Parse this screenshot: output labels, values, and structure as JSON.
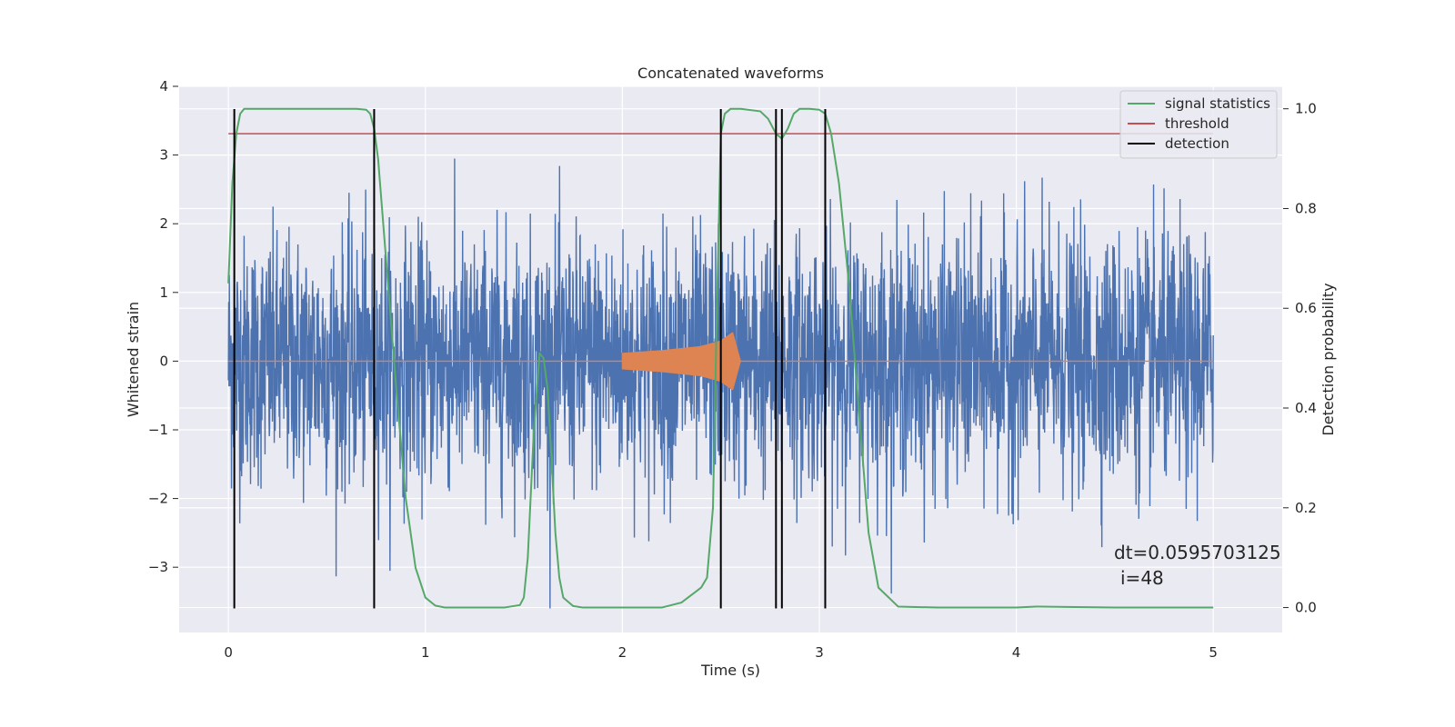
{
  "chart_data": {
    "type": "line",
    "title": "Concatenated waveforms",
    "xlabel": "Time (s)",
    "ylabel_left": "Whitened strain",
    "ylabel_right": "Detection probability",
    "xlim": [
      -0.25,
      5.35
    ],
    "ylim_left": [
      -3.95,
      4.0
    ],
    "ylim_right": [
      -0.05,
      1.045
    ],
    "xticks": [
      0,
      1,
      2,
      3,
      4,
      5
    ],
    "yticks_left": [
      -3,
      -2,
      -1,
      0,
      1,
      2,
      3,
      4
    ],
    "yticks_right": [
      0.0,
      0.2,
      0.4,
      0.6,
      0.8,
      1.0
    ],
    "xtick_labels": [
      "0",
      "1",
      "2",
      "3",
      "4",
      "5"
    ],
    "ytick_labels_left": [
      "−3",
      "−2",
      "−1",
      "0",
      "1",
      "2",
      "3",
      "4"
    ],
    "ytick_labels_right": [
      "0.0",
      "0.2",
      "0.4",
      "0.6",
      "0.8",
      "1.0"
    ],
    "grid": true,
    "legend_position": "top-right",
    "background_color": "#eaeaf2",
    "series": [
      {
        "name": "",
        "kind": "noisy strain",
        "color": "#4c72b0",
        "x_range": [
          0,
          5
        ],
        "typical_amplitude": 0.9,
        "min": -3.6,
        "max": 3.55
      },
      {
        "name": "",
        "kind": "injected chirp",
        "color": "#dd8452",
        "x_range": [
          2.0,
          2.6
        ],
        "envelope_x": [
          2.0,
          2.2,
          2.4,
          2.5,
          2.56,
          2.6
        ],
        "envelope_y": [
          0.12,
          0.16,
          0.22,
          0.3,
          0.42,
          0.0
        ]
      },
      {
        "name": "signal statistics",
        "axis": "right",
        "color": "#55a868",
        "x": [
          0.0,
          0.02,
          0.04,
          0.06,
          0.08,
          0.1,
          0.15,
          0.3,
          0.5,
          0.65,
          0.7,
          0.72,
          0.74,
          0.76,
          0.8,
          0.85,
          0.9,
          0.95,
          1.0,
          1.05,
          1.1,
          1.2,
          1.4,
          1.48,
          1.5,
          1.52,
          1.55,
          1.58,
          1.6,
          1.62,
          1.64,
          1.66,
          1.68,
          1.7,
          1.75,
          1.8,
          2.0,
          2.2,
          2.3,
          2.35,
          2.4,
          2.43,
          2.46,
          2.48,
          2.5,
          2.52,
          2.55,
          2.6,
          2.7,
          2.74,
          2.78,
          2.81,
          2.84,
          2.87,
          2.9,
          2.95,
          3.0,
          3.03,
          3.06,
          3.1,
          3.15,
          3.2,
          3.25,
          3.3,
          3.4,
          3.6,
          4.0,
          4.1,
          4.3,
          4.5,
          5.0
        ],
        "y": [
          0.65,
          0.85,
          0.95,
          0.99,
          1.0,
          1.0,
          1.0,
          1.0,
          1.0,
          1.0,
          0.998,
          0.99,
          0.96,
          0.9,
          0.7,
          0.45,
          0.22,
          0.08,
          0.02,
          0.004,
          0.0,
          0.0,
          0.0,
          0.005,
          0.02,
          0.1,
          0.35,
          0.51,
          0.5,
          0.44,
          0.3,
          0.15,
          0.06,
          0.02,
          0.003,
          0.0,
          0.0,
          0.0,
          0.01,
          0.025,
          0.04,
          0.06,
          0.2,
          0.6,
          0.95,
          0.99,
          1.0,
          1.0,
          0.995,
          0.98,
          0.95,
          0.94,
          0.96,
          0.99,
          1.0,
          1.0,
          0.998,
          0.99,
          0.95,
          0.85,
          0.65,
          0.4,
          0.15,
          0.04,
          0.002,
          0.0,
          0.0,
          0.002,
          0.001,
          0.0,
          0.0
        ]
      },
      {
        "name": "threshold",
        "axis": "right",
        "color": "#c44e52",
        "x": [
          0,
          5
        ],
        "y": [
          0.95,
          0.95
        ]
      },
      {
        "name": "detection",
        "axis": "left",
        "color": "#000000",
        "x": [
          0.03,
          0.74,
          2.5,
          2.78,
          2.81,
          3.03
        ],
        "y_range": [
          -3.6,
          3.67
        ]
      }
    ],
    "legend": [
      "signal statistics",
      "threshold",
      "detection"
    ],
    "annotation_lines": [
      "dt=0.0595703125",
      "i=48"
    ]
  }
}
